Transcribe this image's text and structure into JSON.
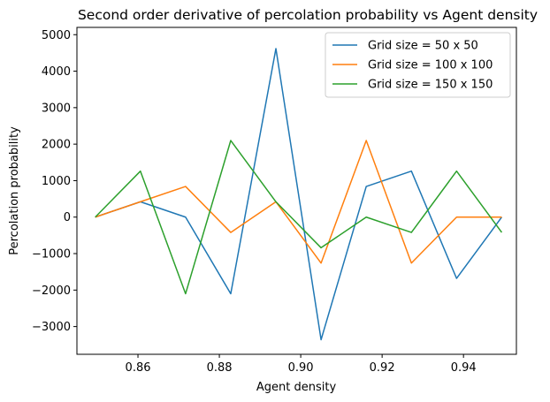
{
  "chart_data": {
    "type": "line",
    "title": "Second order derivative of percolation probability vs Agent density",
    "xlabel": "Agent density",
    "ylabel": "Percolation probability",
    "xlim": [
      0.845,
      0.953
    ],
    "ylim": [
      -3760,
      5200
    ],
    "xticks": [
      0.86,
      0.88,
      0.9,
      0.92,
      0.94
    ],
    "xtick_labels": [
      "0.86",
      "0.88",
      "0.90",
      "0.92",
      "0.94"
    ],
    "yticks": [
      -3000,
      -2000,
      -1000,
      0,
      1000,
      2000,
      3000,
      4000,
      5000
    ],
    "ytick_labels": [
      "−3000",
      "−2000",
      "−1000",
      "0",
      "1000",
      "2000",
      "3000",
      "4000",
      "5000"
    ],
    "grid": false,
    "legend_position": "top-right",
    "x": [
      0.8495,
      0.8606,
      0.8717,
      0.8828,
      0.8939,
      0.905,
      0.9161,
      0.9272,
      0.9383,
      0.9494
    ],
    "series": [
      {
        "name": "Grid size = 50 x 50",
        "color": "#1f77b4",
        "values": [
          0,
          420,
          0,
          -2100,
          4620,
          -3360,
          840,
          1260,
          -1680,
          0
        ]
      },
      {
        "name": "Grid size = 100 x 100",
        "color": "#ff7f0e",
        "values": [
          0,
          420,
          840,
          -420,
          420,
          -1260,
          2100,
          -1260,
          0,
          0
        ]
      },
      {
        "name": "Grid size = 150 x 150",
        "color": "#2ca02c",
        "values": [
          0,
          1260,
          -2100,
          2100,
          420,
          -840,
          0,
          -420,
          1260,
          -420
        ]
      }
    ]
  }
}
